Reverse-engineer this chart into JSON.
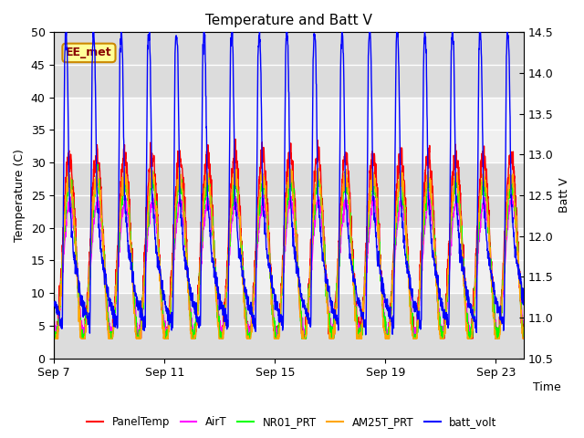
{
  "title": "Temperature and Batt V",
  "xlabel": "Time",
  "ylabel_left": "Temperature (C)",
  "ylabel_right": "Batt V",
  "annotation": "EE_met",
  "ylim_left": [
    0,
    50
  ],
  "ylim_right": [
    10.5,
    14.5
  ],
  "xlim": [
    0,
    17
  ],
  "xtick_positions": [
    0,
    4,
    8,
    12,
    16
  ],
  "xtick_labels": [
    "Sep 7",
    "Sep 11",
    "Sep 15",
    "Sep 19",
    "Sep 23"
  ],
  "ytick_left": [
    0,
    5,
    10,
    15,
    20,
    25,
    30,
    35,
    40,
    45,
    50
  ],
  "ytick_right": [
    10.5,
    11.0,
    11.5,
    12.0,
    12.5,
    13.0,
    13.5,
    14.0,
    14.5
  ],
  "colors": {
    "PanelTemp": "#ff0000",
    "AirT": "#ff00ff",
    "NR01_PRT": "#00ff00",
    "AM25T_PRT": "#ffa500",
    "batt_volt": "#0000ff"
  },
  "legend_labels": [
    "PanelTemp",
    "AirT",
    "NR01_PRT",
    "AM25T_PRT",
    "batt_volt"
  ],
  "bg_color": "#ffffff",
  "plot_bg": "#f0f0f0",
  "band_light": "#e8e8e8",
  "band_dark": "#d0d0d0",
  "grid_color": "#ffffff",
  "annotation_bg": "#ffff99",
  "annotation_border": "#cc8800",
  "annotation_text_color": "#880000",
  "num_points": 2000
}
